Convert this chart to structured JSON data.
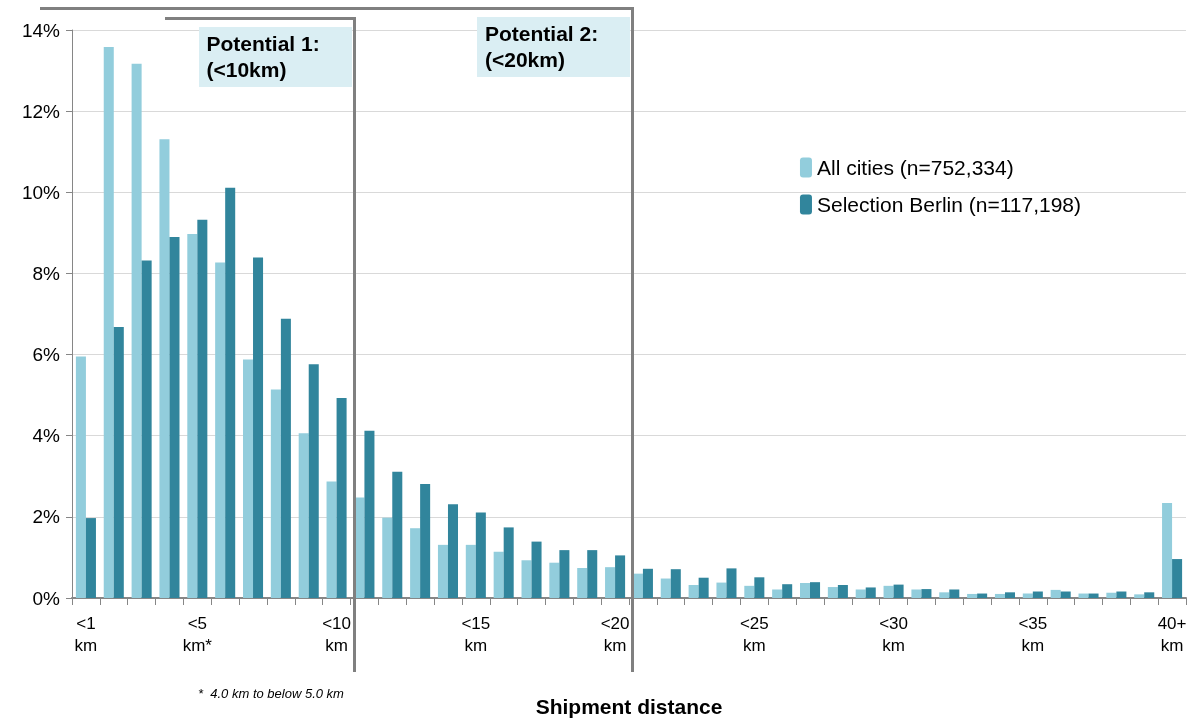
{
  "chart_data": {
    "type": "bar",
    "categories": [
      "<1\nkm",
      null,
      null,
      null,
      "<5\nkm*",
      null,
      null,
      null,
      null,
      "<10\nkm",
      null,
      null,
      null,
      null,
      "<15\nkm",
      null,
      null,
      null,
      null,
      "<20\nkm",
      null,
      null,
      null,
      null,
      "<25\nkm",
      null,
      null,
      null,
      null,
      "<30\nkm",
      null,
      null,
      null,
      null,
      "<35\nkm",
      null,
      null,
      null,
      null,
      "40+\nkm"
    ],
    "series": [
      {
        "name": "All cities (n=752,334)",
        "color": "#92cddc",
        "values": [
          5.95,
          13.58,
          13.17,
          11.31,
          8.97,
          8.27,
          5.88,
          5.14,
          4.06,
          2.87,
          2.48,
          1.98,
          1.72,
          1.31,
          1.31,
          1.14,
          0.93,
          0.87,
          0.74,
          0.76,
          0.6,
          0.48,
          0.32,
          0.38,
          0.3,
          0.21,
          0.37,
          0.27,
          0.21,
          0.3,
          0.21,
          0.14,
          0.1,
          0.1,
          0.11,
          0.2,
          0.11,
          0.13,
          0.09,
          2.34
        ]
      },
      {
        "name": "Selection Berlin (n=117,198)",
        "color": "#31859c",
        "values": [
          1.97,
          6.68,
          8.32,
          8.9,
          9.32,
          10.11,
          8.39,
          6.88,
          5.76,
          4.93,
          4.12,
          3.11,
          2.81,
          2.31,
          2.11,
          1.74,
          1.39,
          1.18,
          1.18,
          1.05,
          0.72,
          0.71,
          0.5,
          0.73,
          0.51,
          0.34,
          0.39,
          0.32,
          0.26,
          0.33,
          0.22,
          0.21,
          0.11,
          0.14,
          0.16,
          0.16,
          0.11,
          0.16,
          0.14,
          0.96
        ]
      }
    ],
    "ylim": [
      0,
      14
    ],
    "yticks": [
      {
        "value": 0,
        "label": "0%"
      },
      {
        "value": 2,
        "label": "2%"
      },
      {
        "value": 4,
        "label": "4%"
      },
      {
        "value": 6,
        "label": "6%"
      },
      {
        "value": 8,
        "label": "8%"
      },
      {
        "value": 10,
        "label": "10%"
      },
      {
        "value": 12,
        "label": "12%"
      },
      {
        "value": 14,
        "label": "14%"
      }
    ],
    "xlabel": "Shipment distance",
    "grid": "y",
    "legend": "right",
    "annotations": [
      "Potential 1:\n(<10km)",
      "Potential 2:\n(<20km)",
      "*  4.0 km to below 5.0 km"
    ]
  }
}
